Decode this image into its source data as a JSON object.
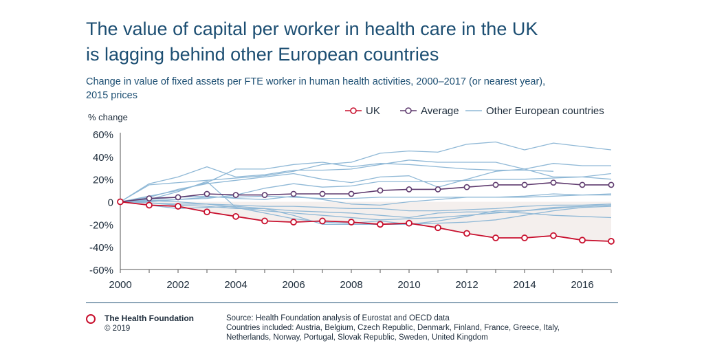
{
  "title_line1": "The value of capital per worker in health care in the UK",
  "title_line2": "is lagging behind other European countries",
  "subtitle_line1": "Change in value of fixed assets per FTE worker in human health activities, 2000–2017 (or nearest year),",
  "subtitle_line2": "2015 prices",
  "colors": {
    "uk": "#c8102e",
    "average": "#5e3a6e",
    "other": "#8fb8d6",
    "area": "#f4efed",
    "axis": "#555555",
    "text": "#1c2b3a",
    "brand": "#1c4e72"
  },
  "chart_data": {
    "type": "line",
    "ylabel": "% change",
    "xlabel": "",
    "xlim": [
      2000,
      2017
    ],
    "ylim": [
      -60,
      60
    ],
    "x_ticks": [
      2000,
      2002,
      2004,
      2006,
      2008,
      2010,
      2012,
      2014,
      2016
    ],
    "x_tick_labels": [
      "2000",
      "2002",
      "2004",
      "2006",
      "2008",
      "2010",
      "2012",
      "2014",
      "2016"
    ],
    "y_ticks": [
      60,
      40,
      20,
      0,
      -20,
      -40,
      -60
    ],
    "y_tick_labels": [
      "60%",
      "40%",
      "20%",
      "0",
      "-20%",
      "-40%",
      "-60%"
    ],
    "legend": [
      "UK",
      "Average",
      "Other European countries"
    ],
    "legend_position": "top-right",
    "x": [
      2000,
      2001,
      2002,
      2003,
      2004,
      2005,
      2006,
      2007,
      2008,
      2009,
      2010,
      2011,
      2012,
      2013,
      2014,
      2015,
      2016,
      2017
    ],
    "series": [
      {
        "name": "UK",
        "values": [
          0,
          -3,
          -4,
          -9,
          -13,
          -17,
          -18,
          -17,
          -18,
          -20,
          -19,
          -23,
          -28,
          -32,
          -32,
          -30,
          -34,
          -35
        ]
      },
      {
        "name": "Average",
        "values": [
          0,
          3,
          4,
          7,
          6,
          6,
          7,
          7,
          7,
          10,
          11,
          11,
          13,
          15,
          15,
          17,
          15,
          15
        ]
      }
    ],
    "other_series": [
      {
        "name": "Other country",
        "values": [
          0,
          15,
          17,
          19,
          21,
          23,
          27,
          33,
          35,
          43,
          45,
          44,
          51,
          53,
          46,
          52,
          49,
          46
        ]
      },
      {
        "name": "Other country",
        "values": [
          0,
          16,
          22,
          31,
          22,
          24,
          28,
          28,
          29,
          33,
          37,
          35,
          35,
          35,
          29,
          34,
          32,
          32
        ]
      },
      {
        "name": "Other country",
        "values": [
          0,
          5,
          10,
          17,
          29,
          29,
          33,
          35,
          31,
          34,
          33,
          31,
          29,
          28,
          28,
          27,
          null,
          null
        ]
      },
      {
        "name": "Other country",
        "values": [
          0,
          2,
          9,
          18,
          -5,
          -10,
          -15,
          -18,
          -19,
          -17,
          -20,
          -17,
          -13,
          -8,
          -8,
          -5,
          -4,
          -3
        ]
      },
      {
        "name": "Other country",
        "values": [
          0,
          4,
          11,
          16,
          19,
          22,
          25,
          20,
          17,
          22,
          23,
          13,
          20,
          27,
          29,
          22,
          22,
          20
        ]
      },
      {
        "name": "Other country",
        "values": [
          0,
          0,
          2,
          3,
          6,
          12,
          16,
          13,
          14,
          18,
          18,
          18,
          19,
          20,
          20,
          21,
          22,
          25
        ]
      },
      {
        "name": "Other country",
        "values": [
          0,
          1,
          2,
          4,
          4,
          5,
          4,
          3,
          3,
          4,
          4,
          4,
          4,
          4,
          4,
          5,
          6,
          7
        ]
      },
      {
        "name": "Other country",
        "values": [
          0,
          -1,
          -2,
          -2,
          -3,
          -4,
          -4,
          -5,
          -6,
          -6,
          -8,
          -8,
          -7,
          -6,
          -4,
          -3,
          -3,
          -2
        ]
      },
      {
        "name": "Other country",
        "values": [
          0,
          -3,
          -6,
          -5,
          -4,
          -6,
          -8,
          -9,
          -10,
          -12,
          -14,
          -10,
          -9,
          -9,
          -10,
          -12,
          -13,
          -14
        ]
      },
      {
        "name": "Other country",
        "values": [
          0,
          1,
          0,
          -2,
          -5,
          -8,
          -10,
          -12,
          -14,
          -16,
          -15,
          -14,
          -12,
          -10,
          -8,
          -6,
          -4,
          -3
        ]
      },
      {
        "name": "Other country",
        "values": [
          0,
          2,
          4,
          5,
          3,
          2,
          5,
          2,
          -2,
          -3,
          0,
          2,
          4,
          4,
          5,
          7,
          6,
          6
        ]
      },
      {
        "name": "Other country",
        "values": [
          0,
          -1,
          -3,
          -4,
          -6,
          -6,
          -12,
          -20,
          -20,
          -20,
          -20,
          -19,
          -18,
          -16,
          -12,
          -8,
          -5,
          -4
        ]
      }
    ]
  },
  "footer": {
    "logo_name": "The Health Foundation",
    "copyright": "© 2019",
    "source": "Source: Health Foundation analysis of Eurostat and OECD data",
    "countries_line1": "Countries included: Austria, Belgium, Czech Republic, Denmark, Finland, France, Greece, Italy,",
    "countries_line2": "Netherlands, Norway, Portugal, Slovak Republic, Sweden, United Kingdom"
  }
}
